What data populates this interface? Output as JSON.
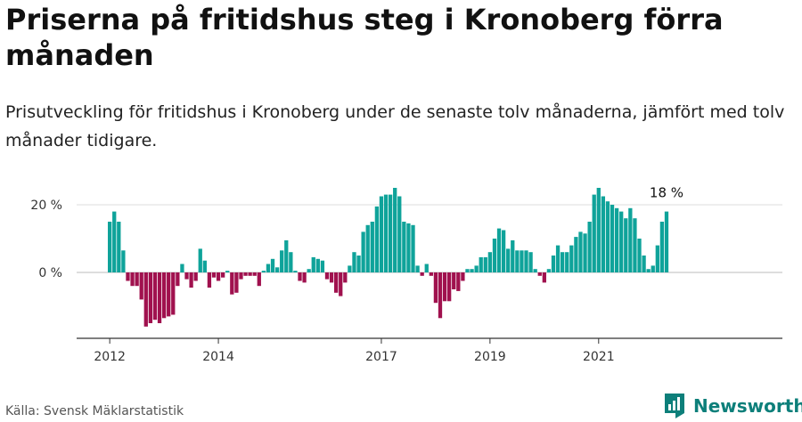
{
  "title": "Priserna på fritidshus steg i Kronoberg förra månaden",
  "subtitle": "Prisutveckling för fritidshus i Kronoberg under de senaste tolv månaderna, jämfört med tolv månader tidigare.",
  "source": "Källa: Svensk Mäklarstatistik",
  "brand": "Newsworthy",
  "colors": {
    "positive": "#0fa39a",
    "negative": "#a0114e",
    "axis": "#333333",
    "grid": "#dddddd",
    "brand": "#0d7f7a"
  },
  "chart_data": {
    "type": "bar",
    "ylabel": "",
    "xlabel": "",
    "ylim": [
      -20,
      27
    ],
    "y_ticks": [
      {
        "value": 0,
        "label": "0 %"
      },
      {
        "value": 20,
        "label": "20 %"
      }
    ],
    "x_ticks": [
      {
        "index": 0,
        "label": "2012"
      },
      {
        "index": 24,
        "label": "2014"
      },
      {
        "index": 60,
        "label": "2017"
      },
      {
        "index": 84,
        "label": "2019"
      },
      {
        "index": 108,
        "label": "2021"
      }
    ],
    "grid": true,
    "last_value_label": "18 %",
    "values": [
      15,
      18,
      15,
      6.5,
      -2.5,
      -4,
      -4,
      -8,
      -16,
      -15,
      -14,
      -15,
      -13.5,
      -13,
      -12.5,
      -4,
      2.5,
      -2,
      -4.5,
      -2.5,
      7,
      3.5,
      -4.5,
      -1.5,
      -2.5,
      -1.5,
      0.5,
      -6.5,
      -6,
      -2,
      -1,
      -1,
      -1,
      -4,
      0.5,
      2.5,
      4,
      1.5,
      6.5,
      9.5,
      6,
      0.5,
      -2.5,
      -3,
      1,
      4.5,
      4,
      3.5,
      -2,
      -3,
      -6,
      -7,
      -3,
      2,
      6,
      5,
      12,
      14,
      15,
      19.5,
      22.5,
      23,
      23,
      25,
      22.5,
      15,
      14.5,
      14,
      2,
      -1,
      2.5,
      -1,
      -9,
      -13.5,
      -8.5,
      -8.5,
      -5,
      -5.5,
      -2.5,
      1,
      1,
      2,
      4.5,
      4.5,
      6,
      10,
      13,
      12.5,
      7,
      9.5,
      6.5,
      6.5,
      6.5,
      6,
      1,
      -1,
      -3,
      1,
      5,
      8,
      6,
      6,
      8,
      10.5,
      12,
      11.5,
      15,
      23,
      25,
      22.5,
      21,
      20,
      19,
      18,
      16,
      19,
      16,
      10,
      5,
      1,
      2,
      8,
      15,
      18
    ]
  }
}
